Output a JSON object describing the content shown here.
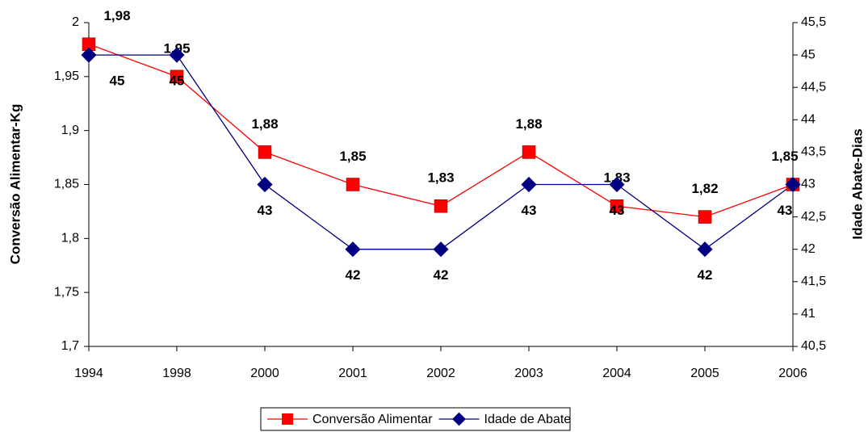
{
  "chart_data": {
    "type": "line",
    "y_label": "Conversão Alimentar-Kg",
    "y2_label": "Idade Abate-Dias",
    "categories": [
      "1994",
      "1998",
      "2000",
      "2001",
      "2002",
      "2003",
      "2004",
      "2005",
      "2006"
    ],
    "series": [
      {
        "name": "Conversão Alimentar",
        "color": "#ff0000",
        "marker": "square",
        "values": [
          1.98,
          1.95,
          1.88,
          1.85,
          1.83,
          1.88,
          1.83,
          1.82,
          1.85
        ],
        "value_labels": [
          "1,98",
          "1,95",
          "1,88",
          "1,85",
          "1,83",
          "1,88",
          "1,83",
          "1,82",
          "1,85"
        ]
      },
      {
        "name": "Idade de Abate",
        "color": "#000080",
        "marker": "diamond",
        "axis": "y2",
        "values": [
          45,
          45,
          43,
          42,
          42,
          43,
          43,
          42,
          43
        ]
      }
    ],
    "ylim": [
      1.7,
      2
    ],
    "yticks": [
      {
        "value": 1.7,
        "label": "1,7"
      },
      {
        "value": 1.75,
        "label": "1,75"
      },
      {
        "value": 1.8,
        "label": "1,8"
      },
      {
        "value": 1.85,
        "label": "1,85"
      },
      {
        "value": 1.9,
        "label": "1,9"
      },
      {
        "value": 1.95,
        "label": "1,95"
      },
      2
    ],
    "y2lim": [
      40.5,
      45.5
    ],
    "y2ticks": [
      {
        "value": 40.5,
        "label": "40,5"
      },
      41,
      {
        "value": 41.5,
        "label": "41,5"
      },
      42,
      {
        "value": 42.5,
        "label": "42,5"
      },
      43,
      {
        "value": 43.5,
        "label": "43,5"
      },
      44,
      {
        "value": 44.5,
        "label": "44,5"
      },
      45,
      {
        "value": 45.5,
        "label": "45,5"
      }
    ],
    "legend": "bottom"
  }
}
